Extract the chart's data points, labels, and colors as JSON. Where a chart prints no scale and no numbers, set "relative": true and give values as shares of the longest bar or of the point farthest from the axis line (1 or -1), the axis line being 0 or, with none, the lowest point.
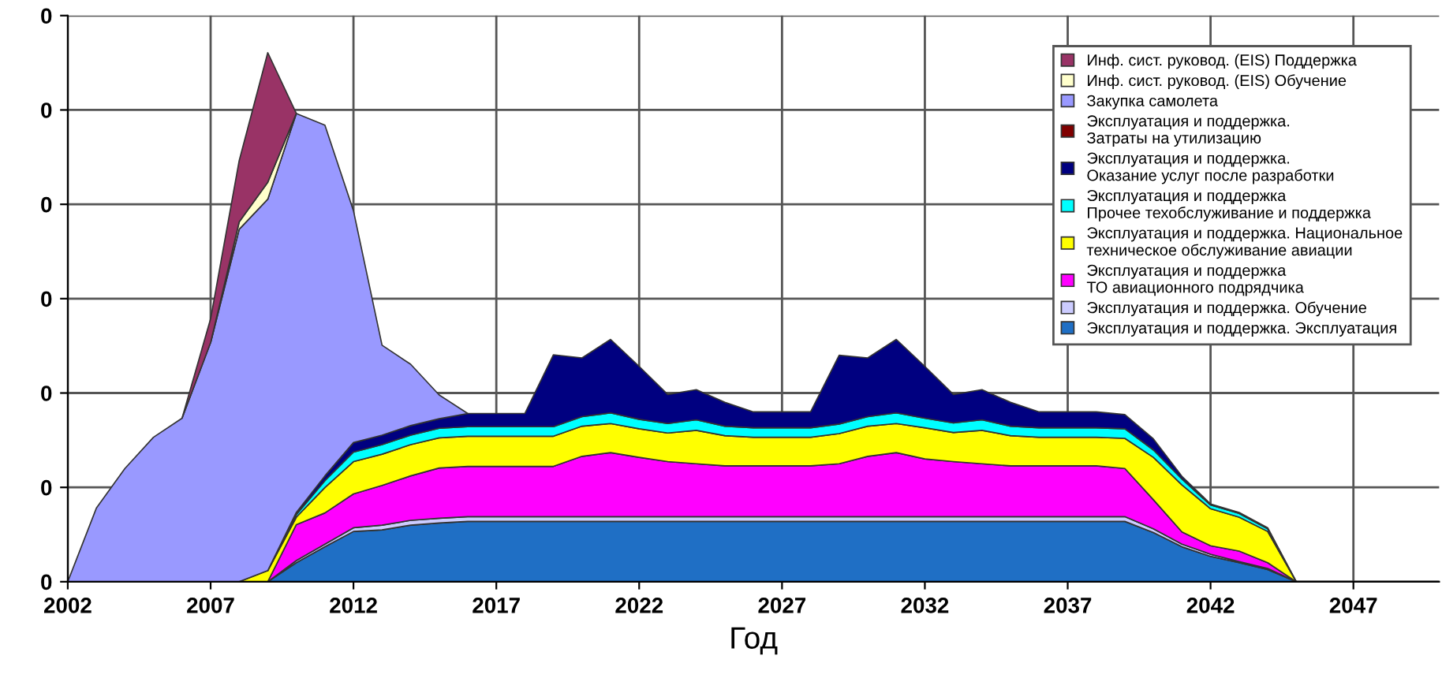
{
  "chart_data": {
    "type": "area",
    "stacked": true,
    "relative": true,
    "xlabel": "Год",
    "x": [
      2002,
      2003,
      2004,
      2005,
      2006,
      2007,
      2008,
      2009,
      2010,
      2011,
      2012,
      2013,
      2014,
      2015,
      2016,
      2017,
      2018,
      2019,
      2020,
      2021,
      2022,
      2023,
      2024,
      2025,
      2026,
      2027,
      2028,
      2029,
      2030,
      2031,
      2032,
      2033,
      2034,
      2035,
      2036,
      2037,
      2038,
      2039,
      2040,
      2041,
      2042,
      2043,
      2044,
      2045
    ],
    "xlim": [
      2002,
      2050
    ],
    "xticks": [
      2002,
      2007,
      2012,
      2017,
      2022,
      2027,
      2032,
      2037,
      2042,
      2047
    ],
    "annotations": [
      "0",
      "0",
      "0",
      "0",
      "0",
      "0",
      "0"
    ],
    "grid": true,
    "legend": "top right",
    "series": [
      {
        "name": "Эксплуатация и поддержка. Эксплуатация",
        "color": "#1f6fc5",
        "values": [
          null,
          null,
          null,
          null,
          null,
          null,
          null,
          0,
          0.036,
          0.066,
          0.095,
          0.098,
          0.107,
          0.111,
          0.114,
          0.114,
          0.114,
          0.114,
          0.114,
          0.114,
          0.114,
          0.114,
          0.114,
          0.114,
          0.114,
          0.114,
          0.114,
          0.114,
          0.114,
          0.114,
          0.114,
          0.114,
          0.114,
          0.114,
          0.114,
          0.114,
          0.114,
          0.114,
          0.093,
          0.066,
          0.048,
          0.036,
          0.023,
          0
        ]
      },
      {
        "name": "Эксплуатация и поддержка. Обучение",
        "color": "#ccccff",
        "values": [
          null,
          null,
          null,
          null,
          null,
          null,
          null,
          0,
          0.004,
          0.005,
          0.007,
          0.009,
          0.009,
          0.009,
          0.009,
          0.009,
          0.009,
          0.009,
          0.009,
          0.009,
          0.009,
          0.009,
          0.009,
          0.009,
          0.009,
          0.009,
          0.009,
          0.009,
          0.009,
          0.009,
          0.009,
          0.009,
          0.009,
          0.009,
          0.009,
          0.009,
          0.009,
          0.009,
          0.007,
          0.005,
          0.004,
          0.002,
          0.002,
          0
        ]
      },
      {
        "name": "Эксплуатация и поддержка\nТО авиационного подрядчика",
        "color": "#ff00ff",
        "values": [
          null,
          null,
          null,
          null,
          null,
          null,
          null,
          0,
          0.068,
          0.059,
          0.064,
          0.075,
          0.084,
          0.095,
          0.095,
          0.095,
          0.095,
          0.095,
          0.114,
          0.121,
          0.112,
          0.104,
          0.1,
          0.096,
          0.096,
          0.096,
          0.096,
          0.1,
          0.114,
          0.121,
          0.109,
          0.104,
          0.1,
          0.096,
          0.096,
          0.096,
          0.096,
          0.091,
          0.055,
          0.023,
          0.016,
          0.02,
          0.011,
          0
        ]
      },
      {
        "name": "Эксплуатация и поддержка. Национальное\nтехническое обслуживание авиации",
        "color": "#ffff00",
        "values": [
          null,
          null,
          null,
          null,
          null,
          null,
          0,
          0.021,
          0.014,
          0.048,
          0.061,
          0.059,
          0.059,
          0.057,
          0.057,
          0.057,
          0.057,
          0.057,
          0.057,
          0.055,
          0.054,
          0.054,
          0.063,
          0.057,
          0.054,
          0.054,
          0.054,
          0.057,
          0.057,
          0.055,
          0.059,
          0.055,
          0.063,
          0.057,
          0.054,
          0.054,
          0.054,
          0.057,
          0.08,
          0.089,
          0.07,
          0.064,
          0.059,
          0
        ]
      },
      {
        "name": "Эксплуатация и поддержка\nПрочее техобслуживание и поддержка",
        "color": "#00ffff",
        "values": [
          null,
          null,
          null,
          null,
          null,
          null,
          null,
          0,
          0.005,
          0.013,
          0.018,
          0.018,
          0.018,
          0.018,
          0.018,
          0.018,
          0.018,
          0.018,
          0.018,
          0.02,
          0.018,
          0.018,
          0.02,
          0.018,
          0.018,
          0.018,
          0.018,
          0.018,
          0.018,
          0.02,
          0.018,
          0.018,
          0.02,
          0.018,
          0.018,
          0.018,
          0.018,
          0.018,
          0.014,
          0.011,
          0.007,
          0.007,
          0.005,
          0
        ]
      },
      {
        "name": "Эксплуатация и поддержка.\nОказание услуг после разработки",
        "color": "#000080",
        "values": [
          null,
          null,
          null,
          null,
          null,
          null,
          null,
          0,
          0.004,
          0.009,
          0.018,
          0.018,
          0.018,
          0.018,
          0.025,
          0.025,
          0.025,
          0.136,
          0.111,
          0.139,
          0.1,
          0.055,
          0.057,
          0.045,
          0.03,
          0.03,
          0.03,
          0.13,
          0.111,
          0.139,
          0.098,
          0.054,
          0.057,
          0.045,
          0.03,
          0.03,
          0.03,
          0.027,
          0.021,
          0.005,
          0.002,
          0.002,
          0.002,
          0
        ]
      },
      {
        "name": "Эксплуатация и поддержка.\nЗатраты на утилизацию",
        "color": "#800000",
        "values": [
          null,
          null,
          null,
          null,
          null,
          null,
          null,
          null,
          null,
          null,
          null,
          null,
          null,
          null,
          null,
          null,
          null,
          null,
          null,
          null,
          null,
          null,
          null,
          null,
          null,
          null,
          null,
          null,
          null,
          null,
          null,
          null,
          null,
          null,
          null,
          null,
          null,
          null,
          null,
          null,
          null,
          null,
          null,
          null
        ]
      },
      {
        "name": "Закупка самолета",
        "color": "#9999ff",
        "values": [
          0,
          0.139,
          0.214,
          0.273,
          0.309,
          0.452,
          0.666,
          0.702,
          0.754,
          0.663,
          0.438,
          0.17,
          0.116,
          0.045,
          0,
          null,
          null,
          null,
          null,
          null,
          null,
          null,
          null,
          null,
          null,
          null,
          null,
          null,
          null,
          null,
          null,
          null,
          null,
          null,
          null,
          null,
          null,
          null,
          null,
          null,
          null,
          null,
          null,
          null
        ]
      },
      {
        "name": "Инф. сист. руковод. (EIS) Обучение",
        "color": "#ffffcc",
        "values": [
          null,
          null,
          null,
          null,
          null,
          0,
          0.014,
          0.032,
          0,
          null,
          null,
          null,
          null,
          null,
          null,
          null,
          null,
          null,
          null,
          null,
          null,
          null,
          null,
          null,
          null,
          null,
          null,
          null,
          null,
          null,
          null,
          null,
          null,
          null,
          null,
          null,
          null,
          null,
          null,
          null,
          null,
          null,
          null,
          null
        ]
      },
      {
        "name": "Инф. сист. руковод. (EIS) Поддержка",
        "color": "#993366",
        "values": [
          null,
          null,
          null,
          null,
          0,
          0.045,
          0.116,
          0.245,
          0,
          null,
          null,
          null,
          null,
          null,
          null,
          null,
          null,
          null,
          null,
          null,
          null,
          null,
          null,
          null,
          null,
          null,
          null,
          null,
          null,
          null,
          null,
          null,
          null,
          null,
          null,
          null,
          null,
          null,
          null,
          null,
          null,
          null,
          null,
          null
        ]
      }
    ]
  }
}
